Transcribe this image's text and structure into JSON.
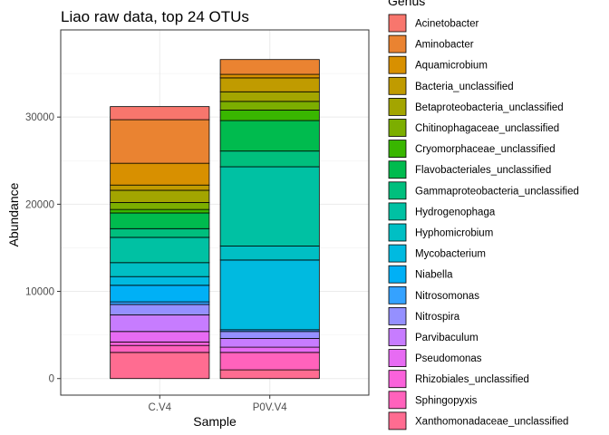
{
  "chart_data": {
    "type": "bar",
    "stacked": true,
    "title": "Liao raw data, top 24 OTUs",
    "xlabel": "Sample",
    "ylabel": "Abundance",
    "ylim": [
      -1900,
      40000
    ],
    "y_ticks": [
      0,
      10000,
      20000,
      30000
    ],
    "y_tick_labels": [
      "0",
      "10000",
      "20000",
      "30000"
    ],
    "categories": [
      "C.V4",
      "P0V.V4"
    ],
    "grid": true,
    "legend_title": "Genus",
    "legend_position": "right",
    "colors": {
      "Acinetobacter": "#F8766D",
      "Aminobacter": "#EA8331",
      "Aquamicrobium": "#D89000",
      "Bacteria_unclassified": "#C09B00",
      "Betaproteobacteria_unclassified": "#A3A500",
      "Chitinophagaceae_unclassified": "#7CAE00",
      "Cryomorphaceae_unclassified": "#39B600",
      "Flavobacteriales_unclassified": "#00BB4E",
      "Gammaproteobacteria_unclassified": "#00BF7D",
      "Hydrogenophaga": "#00C1A3",
      "Hyphomicrobium": "#00BFC4",
      "Mycobacterium": "#00BAE0",
      "Niabella": "#00B0F6",
      "Nitrosomonas": "#35A2FF",
      "Nitrospira": "#9590FF",
      "Parvibaculum": "#C77CFF",
      "Pseudomonas": "#E76BF3",
      "Rhizobiales_unclassified": "#FA62DB",
      "Sphingopyxis": "#FF62BC",
      "Xanthomonadaceae_unclassified": "#FF6C91"
    },
    "legend": [
      "Acinetobacter",
      "Aminobacter",
      "Aquamicrobium",
      "Bacteria_unclassified",
      "Betaproteobacteria_unclassified",
      "Chitinophagaceae_unclassified",
      "Cryomorphaceae_unclassified",
      "Flavobacteriales_unclassified",
      "Gammaproteobacteria_unclassified",
      "Hydrogenophaga",
      "Hyphomicrobium",
      "Mycobacterium",
      "Niabella",
      "Nitrosomonas",
      "Nitrospira",
      "Parvibaculum",
      "Pseudomonas",
      "Rhizobiales_unclassified",
      "Sphingopyxis",
      "Xanthomonadaceae_unclassified"
    ],
    "series": [
      {
        "name": "Acinetobacter",
        "values": [
          1500,
          0
        ]
      },
      {
        "name": "Aminobacter",
        "values": [
          5000,
          1700
        ]
      },
      {
        "name": "Aquamicrobium",
        "values": [
          2500,
          400
        ]
      },
      {
        "name": "Bacteria_unclassified",
        "values": [
          600,
          1600
        ]
      },
      {
        "name": "Betaproteobacteria_unclassified",
        "values": [
          1400,
          1100
        ]
      },
      {
        "name": "Chitinophagaceae_unclassified",
        "values": [
          800,
          1000
        ]
      },
      {
        "name": "Cryomorphaceae_unclassified",
        "values": [
          400,
          1200
        ]
      },
      {
        "name": "Flavobacteriales_unclassified",
        "values": [
          1800,
          3500
        ]
      },
      {
        "name": "Gammaproteobacteria_unclassified",
        "values": [
          1000,
          1800
        ]
      },
      {
        "name": "Hydrogenophaga",
        "values": [
          2900,
          9100
        ]
      },
      {
        "name": "Hyphomicrobium",
        "values": [
          1600,
          1600
        ]
      },
      {
        "name": "Mycobacterium",
        "values": [
          1000,
          8000
        ]
      },
      {
        "name": "Niabella",
        "values": [
          1900,
          0
        ]
      },
      {
        "name": "Nitrosomonas",
        "values": [
          300,
          200
        ]
      },
      {
        "name": "Nitrospira",
        "values": [
          1200,
          800
        ]
      },
      {
        "name": "Parvibaculum",
        "values": [
          1900,
          1000
        ]
      },
      {
        "name": "Pseudomonas",
        "values": [
          1200,
          600
        ]
      },
      {
        "name": "Rhizobiales_unclassified",
        "values": [
          400,
          0
        ]
      },
      {
        "name": "Sphingopyxis",
        "values": [
          800,
          2000
        ]
      },
      {
        "name": "Xanthomonadaceae_unclassified",
        "values": [
          3000,
          1000
        ]
      }
    ]
  }
}
